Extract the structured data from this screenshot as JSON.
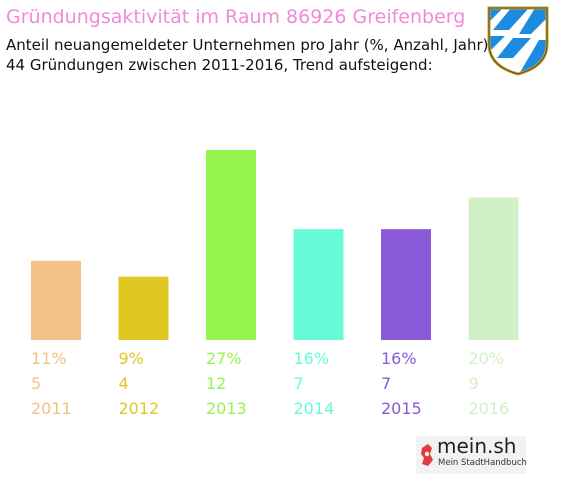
{
  "header": {
    "title": "Gründungsaktivität im Raum 86926 Greifenberg",
    "subtitle_line1": "Anteil neuangemeldeter Unternehmen pro Jahr (%, Anzahl, Jahr)",
    "subtitle_line2": "44 Gründungen zwischen 2011-2016, Trend aufsteigend:"
  },
  "crest": {
    "icon": "bavaria-coat-of-arms-icon"
  },
  "chart_data": {
    "type": "bar",
    "categories": [
      "2011",
      "2012",
      "2013",
      "2014",
      "2015",
      "2016"
    ],
    "percent_labels": [
      "11%",
      "9%",
      "27%",
      "16%",
      "16%",
      "20%"
    ],
    "values": [
      5,
      4,
      12,
      7,
      7,
      9
    ],
    "colors": [
      "#f2c185",
      "#e0c823",
      "#95f54f",
      "#66fbd6",
      "#8a5ad8",
      "#d1f0c8"
    ],
    "grid": false,
    "legend": "none"
  },
  "brand": {
    "name": "mein.sh",
    "tagline": "Mein StadtHandbuch",
    "icon": "germany-map-pin-icon"
  }
}
